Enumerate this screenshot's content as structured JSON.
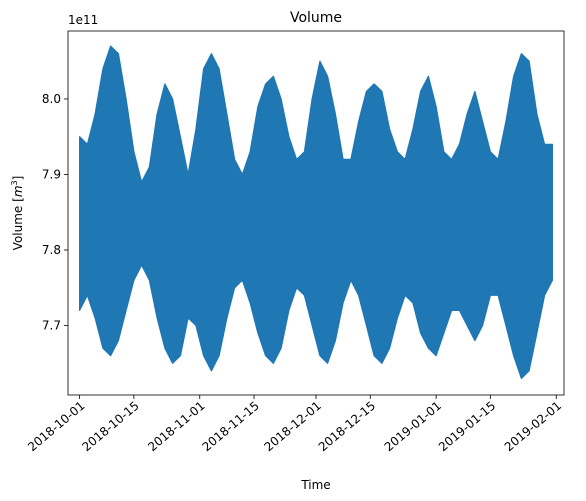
{
  "chart_data": {
    "type": "line",
    "title": "Volume",
    "xlabel": "Time",
    "ylabel_main": "Volume [",
    "ylabel_unit_base": "m",
    "ylabel_unit_exp": "3",
    "ylabel_close": "]",
    "y_offset_label": "1e11",
    "y_scale": 100000000000.0,
    "xlim": [
      "2018-09-28",
      "2019-02-03"
    ],
    "ylim": [
      7.608,
      8.09
    ],
    "grid": false,
    "line_color": "#1f77b4",
    "x_ticks": [
      {
        "value": "2018-10-01",
        "label": "2018-10-01"
      },
      {
        "value": "2018-10-15",
        "label": "2018-10-15"
      },
      {
        "value": "2018-11-01",
        "label": "2018-11-01"
      },
      {
        "value": "2018-11-15",
        "label": "2018-11-15"
      },
      {
        "value": "2018-12-01",
        "label": "2018-12-01"
      },
      {
        "value": "2018-12-15",
        "label": "2018-12-15"
      },
      {
        "value": "2019-01-01",
        "label": "2019-01-01"
      },
      {
        "value": "2019-01-15",
        "label": "2019-01-15"
      },
      {
        "value": "2019-02-01",
        "label": "2019-02-01"
      }
    ],
    "y_ticks": [
      {
        "value": 7.7,
        "label": "7.7"
      },
      {
        "value": 7.8,
        "label": "7.8"
      },
      {
        "value": 7.9,
        "label": "7.9"
      },
      {
        "value": 8.0,
        "label": "8.0"
      }
    ],
    "series": [
      {
        "x": [
          "2018-10-01",
          "2018-10-03",
          "2018-10-05",
          "2018-10-07",
          "2018-10-09",
          "2018-10-11",
          "2018-10-13",
          "2018-10-15",
          "2018-10-17",
          "2018-10-19",
          "2018-10-21",
          "2018-10-23",
          "2018-10-25",
          "2018-10-27",
          "2018-10-29",
          "2018-10-31",
          "2018-11-02",
          "2018-11-04",
          "2018-11-06",
          "2018-11-08",
          "2018-11-10",
          "2018-11-12",
          "2018-11-14",
          "2018-11-16",
          "2018-11-18",
          "2018-11-20",
          "2018-11-22",
          "2018-11-24",
          "2018-11-26",
          "2018-11-28",
          "2018-11-30",
          "2018-12-02",
          "2018-12-04",
          "2018-12-06",
          "2018-12-08",
          "2018-12-10",
          "2018-12-12",
          "2018-12-14",
          "2018-12-16",
          "2018-12-18",
          "2018-12-20",
          "2018-12-22",
          "2018-12-24",
          "2018-12-26",
          "2018-12-28",
          "2018-12-30",
          "2019-01-01",
          "2019-01-03",
          "2019-01-05",
          "2019-01-07",
          "2019-01-09",
          "2019-01-11",
          "2019-01-13",
          "2019-01-15",
          "2019-01-17",
          "2019-01-19",
          "2019-01-21",
          "2019-01-23",
          "2019-01-25",
          "2019-01-27",
          "2019-01-29",
          "2019-01-31"
        ],
        "max": [
          7.95,
          7.94,
          7.98,
          8.04,
          8.07,
          8.06,
          8.0,
          7.93,
          7.89,
          7.91,
          7.98,
          8.02,
          8.0,
          7.95,
          7.9,
          7.96,
          8.04,
          8.06,
          8.04,
          7.98,
          7.92,
          7.9,
          7.93,
          7.99,
          8.02,
          8.03,
          8.0,
          7.95,
          7.92,
          7.93,
          8.0,
          8.05,
          8.03,
          7.98,
          7.92,
          7.92,
          7.97,
          8.01,
          8.02,
          8.01,
          7.96,
          7.93,
          7.92,
          7.96,
          8.01,
          8.03,
          7.99,
          7.93,
          7.92,
          7.94,
          7.98,
          8.01,
          7.97,
          7.93,
          7.92,
          7.97,
          8.03,
          8.06,
          8.05,
          7.98,
          7.94,
          7.94
        ],
        "min": [
          7.72,
          7.74,
          7.71,
          7.67,
          7.66,
          7.68,
          7.72,
          7.76,
          7.78,
          7.76,
          7.71,
          7.67,
          7.65,
          7.66,
          7.71,
          7.7,
          7.66,
          7.64,
          7.66,
          7.71,
          7.75,
          7.76,
          7.73,
          7.69,
          7.66,
          7.65,
          7.67,
          7.72,
          7.75,
          7.74,
          7.7,
          7.66,
          7.65,
          7.68,
          7.73,
          7.76,
          7.74,
          7.7,
          7.66,
          7.65,
          7.67,
          7.71,
          7.74,
          7.73,
          7.69,
          7.67,
          7.66,
          7.69,
          7.72,
          7.72,
          7.7,
          7.68,
          7.7,
          7.74,
          7.74,
          7.7,
          7.66,
          7.63,
          7.64,
          7.69,
          7.74,
          7.76
        ]
      }
    ]
  }
}
